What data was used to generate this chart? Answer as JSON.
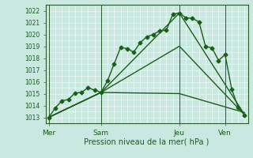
{
  "xlabel": "Pression niveau de la mer( hPa )",
  "bg_color": "#c8e8e0",
  "grid_color": "#ffffff",
  "line_color": "#1a5e1a",
  "ylim": [
    1012.5,
    1022.5
  ],
  "yticks": [
    1013,
    1014,
    1015,
    1016,
    1017,
    1018,
    1019,
    1020,
    1021,
    1022
  ],
  "xtick_labels": [
    "Mer",
    "Sam",
    "Jeu",
    "Ven"
  ],
  "xtick_positions": [
    0,
    8,
    20,
    27
  ],
  "vline_positions": [
    0,
    8,
    20,
    27
  ],
  "series1_x": [
    0,
    1,
    2,
    3,
    4,
    5,
    6,
    7,
    8,
    9,
    10,
    11,
    12,
    13,
    14,
    15,
    16,
    17,
    18,
    19,
    20,
    21,
    22,
    23,
    24,
    25,
    26,
    27,
    28,
    29,
    30
  ],
  "series1_y": [
    1013.0,
    1013.8,
    1014.4,
    1014.5,
    1015.05,
    1015.1,
    1015.5,
    1015.3,
    1015.1,
    1016.1,
    1017.5,
    1018.9,
    1018.8,
    1018.5,
    1019.3,
    1019.8,
    1020.0,
    1020.3,
    1020.35,
    1021.7,
    1021.8,
    1021.4,
    1021.35,
    1021.05,
    1019.0,
    1018.85,
    1017.8,
    1018.3,
    1015.4,
    1013.85,
    1013.2
  ],
  "series2_x": [
    0,
    8,
    20,
    30
  ],
  "series2_y": [
    1013.0,
    1015.1,
    1021.8,
    1013.2
  ],
  "series3_x": [
    0,
    8,
    20,
    30
  ],
  "series3_y": [
    1013.0,
    1015.1,
    1019.0,
    1013.2
  ],
  "series4_x": [
    0,
    8,
    20,
    30
  ],
  "series4_y": [
    1013.0,
    1015.1,
    1015.0,
    1013.4
  ],
  "xlim": [
    -0.5,
    30.5
  ],
  "linewidth": 1.0,
  "marker_size": 2.5
}
